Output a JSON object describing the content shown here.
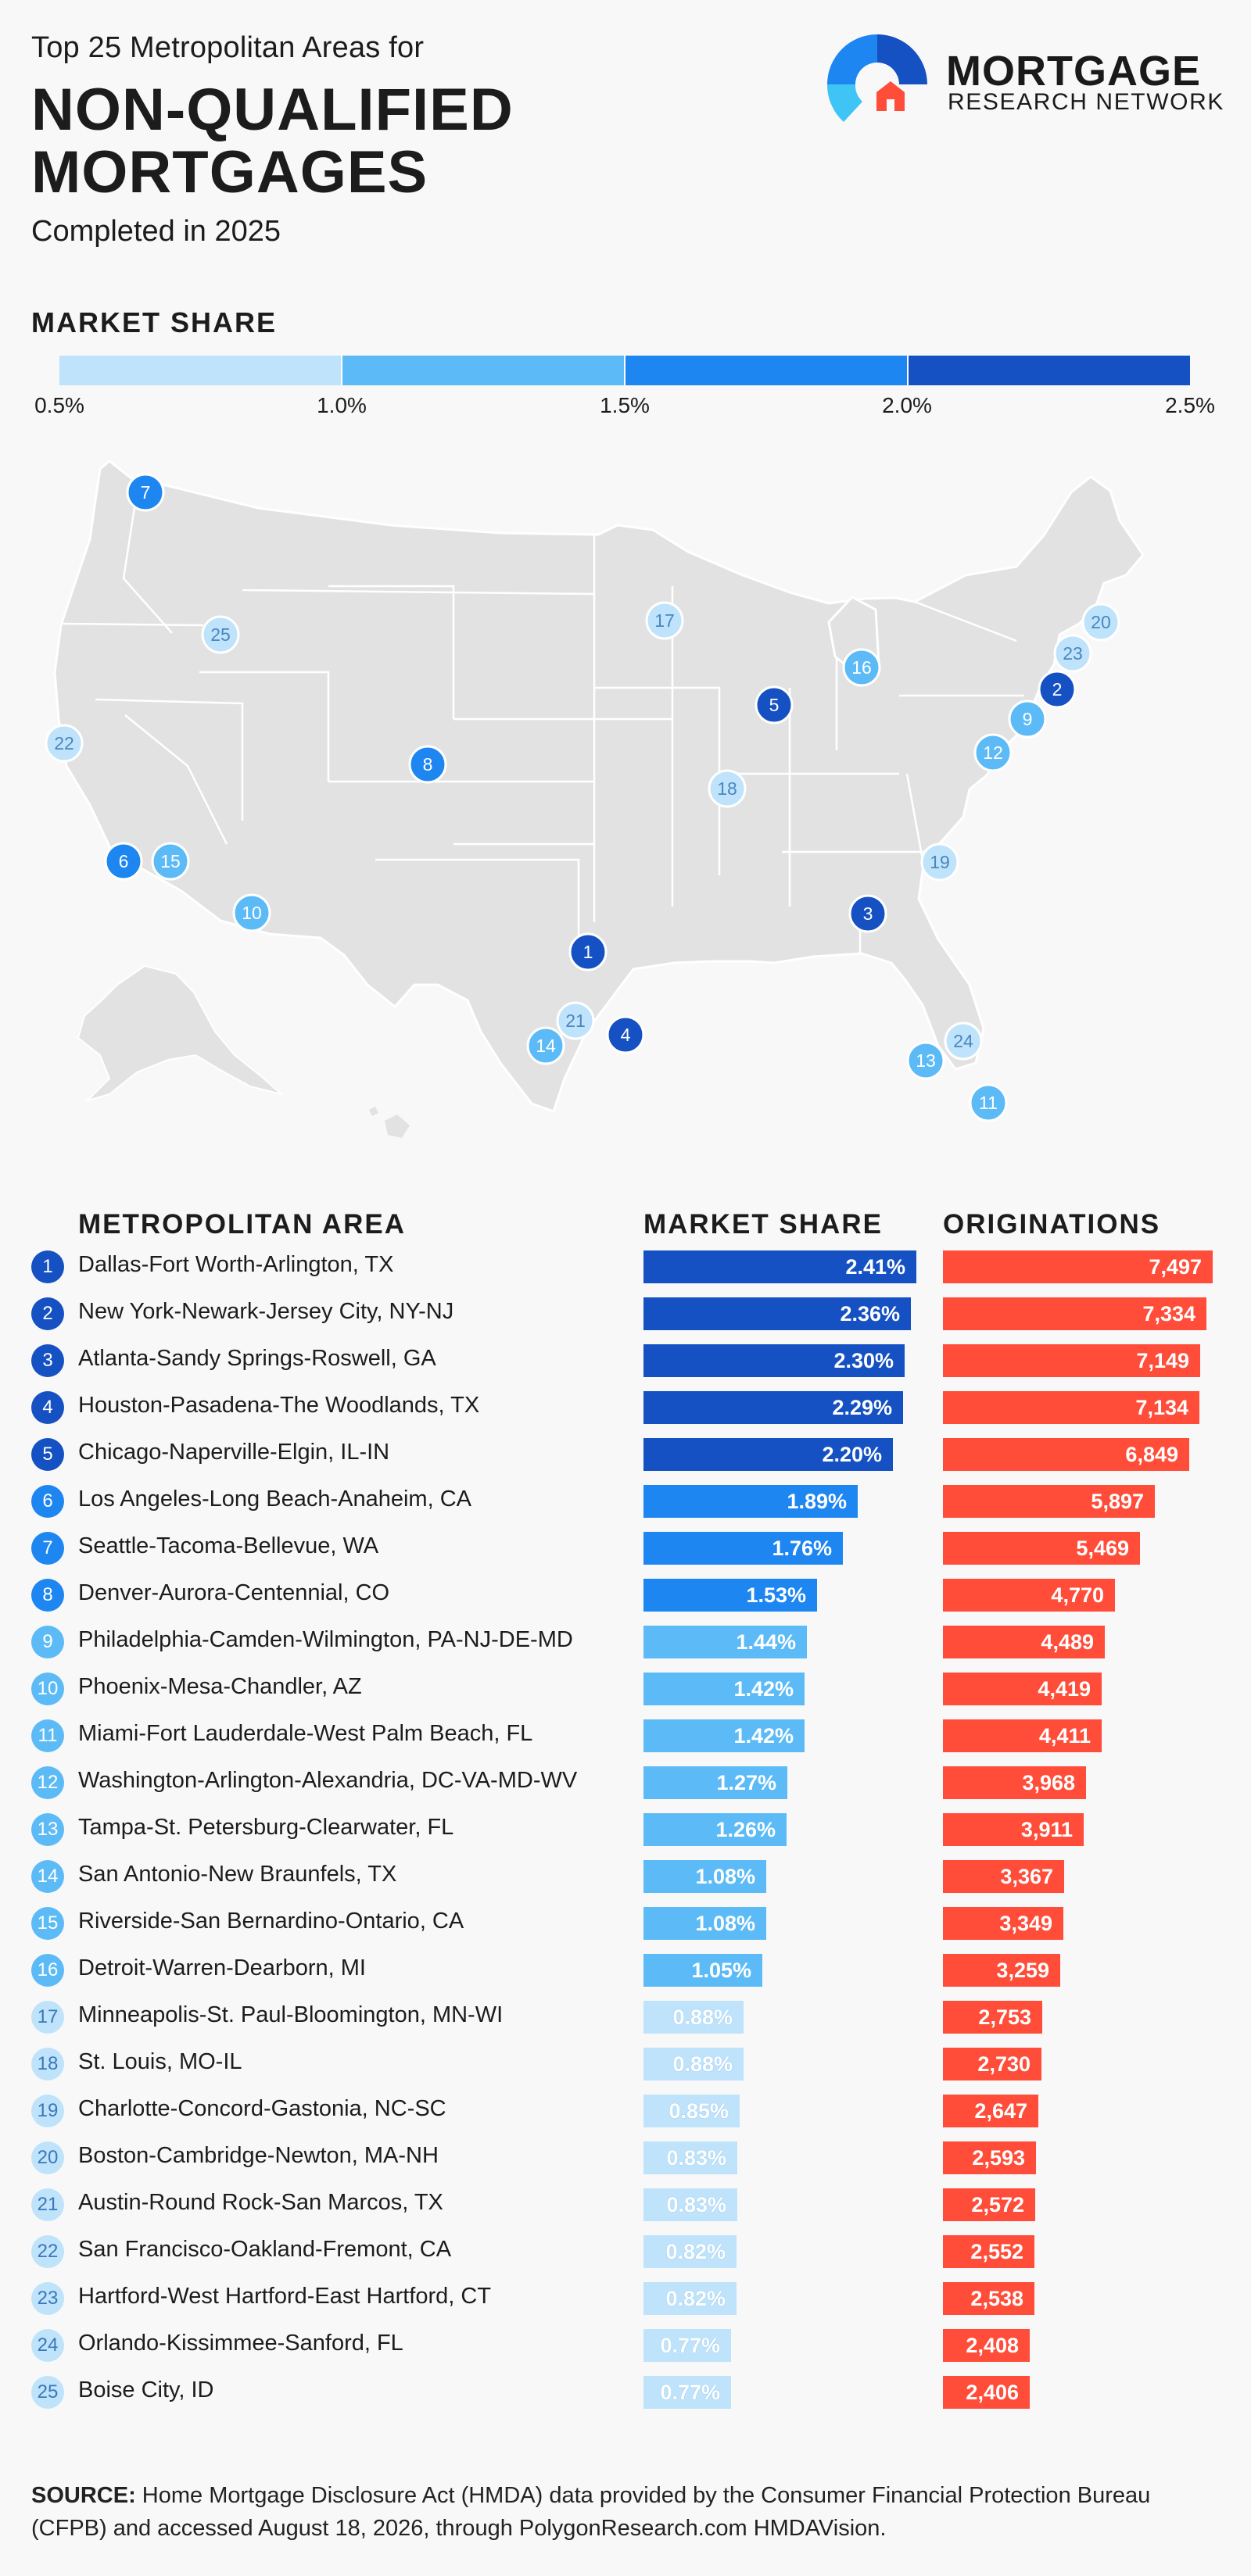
{
  "header": {
    "subtitle_top": "Top 25 Metropolitan Areas for",
    "title_line1": "NON-QUALIFIED",
    "title_line2": "MORTGAGES",
    "subtitle_bottom": "Completed in 2025"
  },
  "logo": {
    "line1": "MORTGAGE",
    "line2": "RESEARCH NETWORK"
  },
  "legend": {
    "title": "MARKET SHARE",
    "ticks": [
      "0.5%",
      "1.0%",
      "1.5%",
      "2.0%",
      "2.5%"
    ],
    "colors": [
      "#bfe3fb",
      "#5cbbf6",
      "#1e86f1",
      "#1551c2"
    ]
  },
  "colors": {
    "accent_orange": "#ff4d3a",
    "map_fill": "#e2e2e2",
    "background": "#f8f8f8"
  },
  "table": {
    "col_metro": "METROPOLITAN AREA",
    "col_share": "MARKET SHARE",
    "col_orig": "ORIGINATIONS"
  },
  "chart_data": {
    "type": "bar",
    "title": "NON-QUALIFIED MORTGAGES",
    "categories": [
      "Dallas-Fort Worth-Arlington, TX",
      "New York-Newark-Jersey City, NY-NJ",
      "Atlanta-Sandy Springs-Roswell, GA",
      "Houston-Pasadena-The Woodlands, TX",
      "Chicago-Naperville-Elgin, IL-IN",
      "Los Angeles-Long Beach-Anaheim, CA",
      "Seattle-Tacoma-Bellevue, WA",
      "Denver-Aurora-Centennial, CO",
      "Philadelphia-Camden-Wilmington, PA-NJ-DE-MD",
      "Phoenix-Mesa-Chandler, AZ",
      "Miami-Fort Lauderdale-West Palm Beach, FL",
      "Washington-Arlington-Alexandria, DC-VA-MD-WV",
      "Tampa-St. Petersburg-Clearwater, FL",
      "San Antonio-New Braunfels, TX",
      "Riverside-San Bernardino-Ontario, CA",
      "Detroit-Warren-Dearborn, MI",
      "Minneapolis-St. Paul-Bloomington, MN-WI",
      "St. Louis, MO-IL",
      "Charlotte-Concord-Gastonia, NC-SC",
      "Boston-Cambridge-Newton, MA-NH",
      "Austin-Round Rock-San Marcos, TX",
      "San Francisco-Oakland-Fremont, CA",
      "Hartford-West Hartford-East Hartford, CT",
      "Orlando-Kissimmee-Sanford, FL",
      "Boise City, ID"
    ],
    "series": [
      {
        "name": "MARKET SHARE",
        "values": [
          2.41,
          2.36,
          2.3,
          2.29,
          2.2,
          1.89,
          1.76,
          1.53,
          1.44,
          1.42,
          1.42,
          1.27,
          1.26,
          1.08,
          1.08,
          1.05,
          0.88,
          0.88,
          0.85,
          0.83,
          0.83,
          0.82,
          0.82,
          0.77,
          0.77
        ],
        "labels": [
          "2.41%",
          "2.36%",
          "2.30%",
          "2.29%",
          "2.20%",
          "1.89%",
          "1.76%",
          "1.53%",
          "1.44%",
          "1.42%",
          "1.42%",
          "1.27%",
          "1.26%",
          "1.08%",
          "1.08%",
          "1.05%",
          "0.88%",
          "0.88%",
          "0.85%",
          "0.83%",
          "0.83%",
          "0.82%",
          "0.82%",
          "0.77%",
          "0.77%"
        ]
      },
      {
        "name": "ORIGINATIONS",
        "values": [
          7497,
          7334,
          7149,
          7134,
          6849,
          5897,
          5469,
          4770,
          4489,
          4419,
          4411,
          3968,
          3911,
          3367,
          3349,
          3259,
          2753,
          2730,
          2647,
          2593,
          2572,
          2552,
          2538,
          2408,
          2406
        ],
        "labels": [
          "7,497",
          "7,334",
          "7,149",
          "7,134",
          "6,849",
          "5,897",
          "5,469",
          "4,770",
          "4,489",
          "4,419",
          "4,411",
          "3,968",
          "3,911",
          "3,367",
          "3,349",
          "3,259",
          "2,753",
          "2,730",
          "2,647",
          "2,593",
          "2,572",
          "2,552",
          "2,538",
          "2,408",
          "2,406"
        ]
      }
    ],
    "ylim": [
      0.5,
      2.5
    ]
  },
  "source": {
    "label": "SOURCE:",
    "text": "Home Mortgage Disclosure Act (HMDA) data provided by the Consumer Financial Protection Bureau (CFPB) and accessed August 18, 2026, through PolygonResearch.com HMDAVision."
  }
}
